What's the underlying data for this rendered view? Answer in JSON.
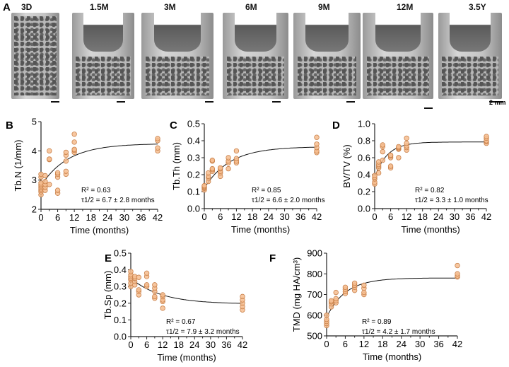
{
  "panel_A": {
    "letter": "A",
    "samples": [
      "3D",
      "1.5M",
      "3M",
      "6M",
      "9M",
      "12M",
      "3.5Y"
    ],
    "scale_label": "2 mm"
  },
  "colors": {
    "marker_fill": "#f6bd8f",
    "marker_stroke": "#c9814a",
    "curve": "#111111"
  },
  "chart_data": [
    {
      "letter": "B",
      "type": "scatter",
      "ylabel": "Tb.N (1/mm)",
      "xlabel": "Time (months)",
      "xlim": [
        0,
        42
      ],
      "ylim": [
        2,
        5
      ],
      "xticks": [
        "0",
        "6",
        "12",
        "18",
        "24",
        "30",
        "36",
        "42"
      ],
      "yticks": [
        "2",
        "3",
        "4",
        "5"
      ],
      "r2_text": "R² = 0.63",
      "tau_label": "τ1/2",
      "tau_text": " = 6.7 ± 2.8 months",
      "fit": {
        "model": "exponential",
        "y0": 2.8,
        "plateau": 4.25,
        "half_life": 6.7
      },
      "groups": [
        {
          "x": 0,
          "y": [
            2.5,
            2.6,
            2.65,
            2.7,
            2.75,
            2.8,
            2.85,
            2.9,
            3.1,
            3.2
          ]
        },
        {
          "x": 1.5,
          "y": [
            2.65,
            2.75,
            2.85,
            2.95,
            3.15
          ]
        },
        {
          "x": 3,
          "y": [
            2.85,
            3.7,
            3.72,
            4.0
          ]
        },
        {
          "x": 6,
          "y": [
            2.55,
            2.65,
            3.1,
            3.2,
            3.25
          ]
        },
        {
          "x": 9,
          "y": [
            3.2,
            3.3,
            3.65,
            3.85,
            3.95
          ]
        },
        {
          "x": 12,
          "y": [
            3.95,
            4.02,
            4.05,
            4.3,
            4.57
          ]
        },
        {
          "x": 42,
          "y": [
            4.0,
            4.1,
            4.35,
            4.42
          ]
        }
      ]
    },
    {
      "letter": "C",
      "type": "scatter",
      "ylabel": "Tb.Th (mm)",
      "xlabel": "Time (months)",
      "xlim": [
        0,
        42
      ],
      "ylim": [
        0,
        0.5
      ],
      "xticks": [
        "0",
        "6",
        "12",
        "18",
        "24",
        "30",
        "36",
        "42"
      ],
      "yticks": [
        "0.0",
        "0.1",
        "0.2",
        "0.3",
        "0.4",
        "0.5"
      ],
      "r2_text": "R² = 0.85",
      "tau_label": "τ1/2",
      "tau_text": " = 6.6 ± 2.0 months",
      "fit": {
        "model": "exponential",
        "y0": 0.12,
        "plateau": 0.365,
        "half_life": 6.6
      },
      "groups": [
        {
          "x": 0,
          "y": [
            0.11,
            0.12,
            0.125,
            0.13,
            0.135
          ]
        },
        {
          "x": 1.5,
          "y": [
            0.16,
            0.18,
            0.19,
            0.21
          ]
        },
        {
          "x": 3,
          "y": [
            0.22,
            0.23,
            0.235,
            0.28,
            0.285
          ]
        },
        {
          "x": 6,
          "y": [
            0.19,
            0.21,
            0.22,
            0.235,
            0.24
          ]
        },
        {
          "x": 9,
          "y": [
            0.235,
            0.27,
            0.28,
            0.3
          ]
        },
        {
          "x": 12,
          "y": [
            0.27,
            0.28,
            0.295,
            0.34
          ]
        },
        {
          "x": 42,
          "y": [
            0.33,
            0.34,
            0.36,
            0.38,
            0.42
          ]
        }
      ]
    },
    {
      "letter": "D",
      "type": "scatter",
      "ylabel": "BV/TV (%)",
      "xlabel": "Time (months)",
      "xlim": [
        0,
        42
      ],
      "ylim": [
        0,
        1
      ],
      "xticks": [
        "0",
        "6",
        "12",
        "18",
        "24",
        "30",
        "36",
        "42"
      ],
      "yticks": [
        "0.0",
        "0.2",
        "0.4",
        "0.6",
        "0.8",
        "1.0"
      ],
      "r2_text": "R² = 0.82",
      "tau_label": "τ1/2",
      "tau_text": " = 3.3 ± 1.0 months",
      "fit": {
        "model": "exponential",
        "y0": 0.37,
        "plateau": 0.785,
        "half_life": 3.3
      },
      "groups": [
        {
          "x": 0,
          "y": [
            0.29,
            0.31,
            0.35,
            0.37,
            0.39
          ]
        },
        {
          "x": 1.5,
          "y": [
            0.42,
            0.48,
            0.5,
            0.52,
            0.55
          ]
        },
        {
          "x": 3,
          "y": [
            0.57,
            0.67,
            0.73,
            0.75
          ]
        },
        {
          "x": 6,
          "y": [
            0.48,
            0.5,
            0.6,
            0.62,
            0.63
          ]
        },
        {
          "x": 9,
          "y": [
            0.6,
            0.7,
            0.71,
            0.72,
            0.73
          ]
        },
        {
          "x": 12,
          "y": [
            0.69,
            0.72,
            0.74,
            0.77,
            0.83
          ]
        },
        {
          "x": 42,
          "y": [
            0.77,
            0.79,
            0.8,
            0.83,
            0.85
          ]
        }
      ]
    },
    {
      "letter": "E",
      "type": "scatter",
      "ylabel": "Tb.Sp (mm)",
      "xlabel": "Time (months)",
      "xlim": [
        0,
        42
      ],
      "ylim": [
        0,
        0.5
      ],
      "xticks": [
        "0",
        "6",
        "12",
        "18",
        "24",
        "30",
        "36",
        "42"
      ],
      "yticks": [
        "0.0",
        "0.1",
        "0.2",
        "0.3",
        "0.4",
        "0.5"
      ],
      "r2_text": "R² = 0.67",
      "tau_label": "τ1/2",
      "tau_text": " = 7.9 ± 3.2 months",
      "fit": {
        "model": "exponential",
        "y0": 0.35,
        "plateau": 0.195,
        "half_life": 7.9
      },
      "groups": [
        {
          "x": 0,
          "y": [
            0.3,
            0.32,
            0.34,
            0.35,
            0.36,
            0.37,
            0.39
          ]
        },
        {
          "x": 1.5,
          "y": [
            0.31,
            0.33,
            0.35,
            0.36
          ]
        },
        {
          "x": 3,
          "y": [
            0.25,
            0.27,
            0.28,
            0.355
          ]
        },
        {
          "x": 6,
          "y": [
            0.3,
            0.31,
            0.36,
            0.38
          ]
        },
        {
          "x": 9,
          "y": [
            0.23,
            0.24,
            0.27,
            0.29,
            0.31
          ]
        },
        {
          "x": 12,
          "y": [
            0.17,
            0.21,
            0.22,
            0.24,
            0.25
          ]
        },
        {
          "x": 42,
          "y": [
            0.16,
            0.18,
            0.2,
            0.22,
            0.24
          ]
        }
      ]
    },
    {
      "letter": "F",
      "type": "scatter",
      "ylabel": "TMD (mg HA/cm³)",
      "xlabel": "Time (months)",
      "xlim": [
        0,
        42
      ],
      "ylim": [
        500,
        900
      ],
      "xticks": [
        "0",
        "6",
        "12",
        "18",
        "24",
        "30",
        "36",
        "42"
      ],
      "yticks": [
        "500",
        "600",
        "700",
        "800",
        "900"
      ],
      "r2_text": "R² = 0.89",
      "tau_label": "τ1/2",
      "tau_text": " = 4.2 ± 1.7 months",
      "fit": {
        "model": "exponential",
        "y0": 590,
        "plateau": 780,
        "half_life": 4.2
      },
      "groups": [
        {
          "x": 0,
          "y": [
            550,
            560,
            570,
            580,
            600
          ]
        },
        {
          "x": 1.5,
          "y": [
            640,
            655,
            665,
            670
          ]
        },
        {
          "x": 3,
          "y": [
            660,
            670,
            680,
            710
          ]
        },
        {
          "x": 6,
          "y": [
            705,
            715,
            725,
            735
          ]
        },
        {
          "x": 9,
          "y": [
            720,
            735,
            745,
            755
          ]
        },
        {
          "x": 12,
          "y": [
            700,
            710,
            730,
            745
          ]
        },
        {
          "x": 42,
          "y": [
            785,
            790,
            800,
            840
          ]
        }
      ]
    }
  ]
}
